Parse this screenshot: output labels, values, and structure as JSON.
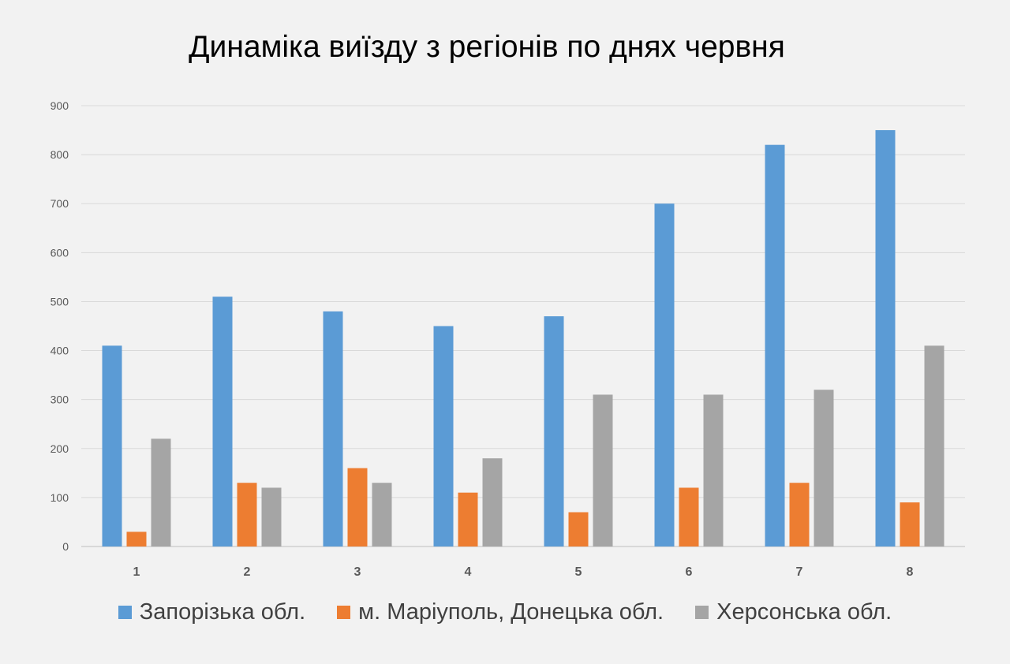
{
  "chart_data": {
    "type": "bar",
    "title": "Динаміка виїзду з регіонів по днях червня",
    "xlabel": "",
    "ylabel": "",
    "categories": [
      "1",
      "2",
      "3",
      "4",
      "5",
      "6",
      "7",
      "8"
    ],
    "ylim": [
      0,
      900
    ],
    "yticks": [
      0,
      100,
      200,
      300,
      400,
      500,
      600,
      700,
      800,
      900
    ],
    "grid": true,
    "legend_position": "bottom",
    "series": [
      {
        "name": "Запорізька обл.",
        "color": "#5b9bd5",
        "values": [
          410,
          510,
          480,
          450,
          470,
          700,
          820,
          850
        ]
      },
      {
        "name": "м. Маріуполь, Донецька обл.",
        "color": "#ed7d31",
        "values": [
          30,
          130,
          160,
          110,
          70,
          120,
          130,
          90
        ]
      },
      {
        "name": "Херсонська обл.",
        "color": "#a5a5a5",
        "values": [
          220,
          120,
          130,
          180,
          310,
          310,
          320,
          410
        ]
      }
    ]
  }
}
